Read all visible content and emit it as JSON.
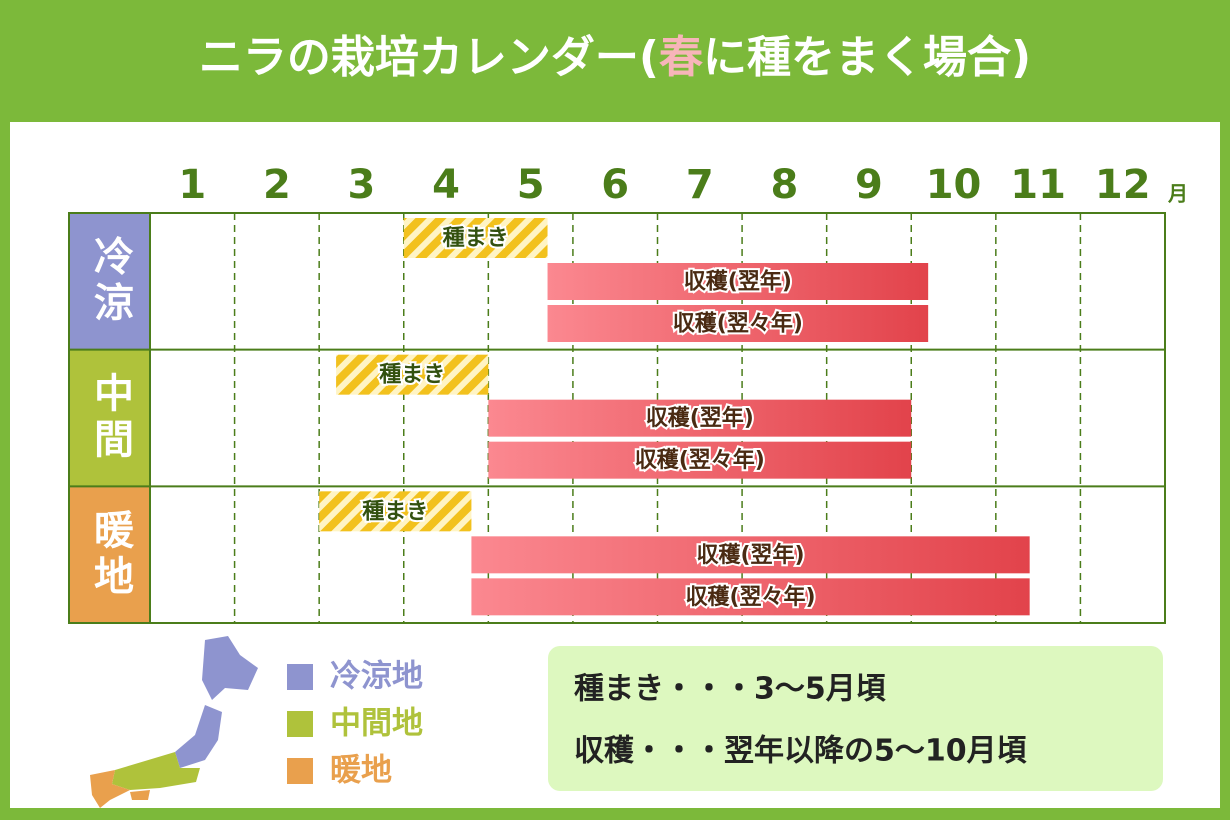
{
  "title": {
    "before": "ニラの栽培カレンダー(",
    "highlight": "春",
    "after": "に種をまく場合)"
  },
  "months": [
    "1",
    "2",
    "3",
    "4",
    "5",
    "6",
    "7",
    "8",
    "9",
    "10",
    "11",
    "12"
  ],
  "month_unit": "月",
  "regions": [
    {
      "name": "冷涼",
      "color": "#8e94cf",
      "bars": [
        {
          "label": "種まき",
          "start": 3.0,
          "end": 4.7
        },
        {
          "label": "収穫(翌年)",
          "start": 4.7,
          "end": 9.2
        },
        {
          "label": "収穫(翌々年)",
          "start": 4.7,
          "end": 9.2
        }
      ]
    },
    {
      "name": "中間",
      "color": "#afc23b",
      "bars": [
        {
          "label": "種まき",
          "start": 2.2,
          "end": 4.0
        },
        {
          "label": "収穫(翌年)",
          "start": 4.0,
          "end": 9.0
        },
        {
          "label": "収穫(翌々年)",
          "start": 4.0,
          "end": 9.0
        }
      ]
    },
    {
      "name": "暖地",
      "color": "#e9a04d",
      "bars": [
        {
          "label": "種まき",
          "start": 2.0,
          "end": 3.8
        },
        {
          "label": "収穫(翌年)",
          "start": 3.8,
          "end": 10.4
        },
        {
          "label": "収穫(翌々年)",
          "start": 3.8,
          "end": 10.4
        }
      ]
    }
  ],
  "legend": [
    {
      "label": "冷涼地",
      "color": "#8e94cf"
    },
    {
      "label": "中間地",
      "color": "#afc23b"
    },
    {
      "label": "暖地",
      "color": "#e9a04d"
    }
  ],
  "notes": [
    "種まき・・・3～5月頃",
    "収穫・・・翌年以降の5～10月頃"
  ]
}
